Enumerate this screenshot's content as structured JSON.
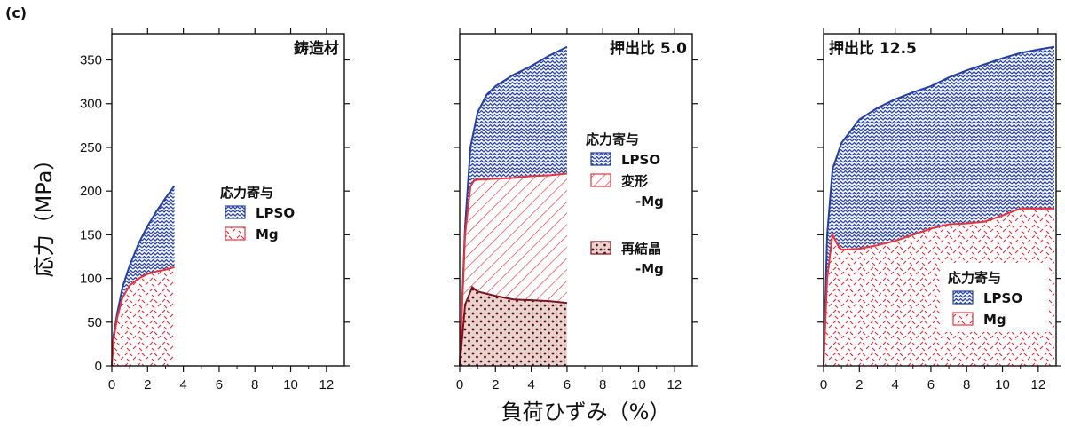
{
  "figure_label": "(c)",
  "ylabel": "応力（MPa）",
  "xlabel": "負荷ひずみ（%）",
  "colors": {
    "lpso": "#2440a0",
    "mg": "#e8323c",
    "rex": "#7a1420",
    "axis": "#111111"
  },
  "chart_data": [
    {
      "type": "area",
      "title": "鋳造材",
      "xlim": [
        0,
        13
      ],
      "ylim": [
        0,
        380
      ],
      "xticks": [
        0,
        2,
        4,
        6,
        8,
        10,
        12
      ],
      "yticks": [
        0,
        50,
        100,
        150,
        200,
        250,
        300,
        350
      ],
      "legend": {
        "title": "応力寄与",
        "entries": [
          "LPSO",
          "Mg"
        ],
        "position": "center-right"
      },
      "series": [
        {
          "name": "LPSO",
          "pattern": "lpso",
          "upper": [
            [
              0,
              0
            ],
            [
              0.1,
              35
            ],
            [
              0.3,
              60
            ],
            [
              0.6,
              90
            ],
            [
              1,
              115
            ],
            [
              1.5,
              140
            ],
            [
              2,
              160
            ],
            [
              2.5,
              177
            ],
            [
              3,
              192
            ],
            [
              3.5,
              206
            ]
          ],
          "lower": [
            [
              0,
              0
            ],
            [
              0.1,
              30
            ],
            [
              0.3,
              55
            ],
            [
              0.6,
              78
            ],
            [
              1,
              92
            ],
            [
              1.5,
              100
            ],
            [
              2,
              105
            ],
            [
              2.5,
              108
            ],
            [
              3,
              110
            ],
            [
              3.5,
              113
            ]
          ]
        },
        {
          "name": "Mg",
          "pattern": "mg",
          "upper": [
            [
              0,
              0
            ],
            [
              0.1,
              30
            ],
            [
              0.3,
              55
            ],
            [
              0.6,
              78
            ],
            [
              1,
              92
            ],
            [
              1.5,
              100
            ],
            [
              2,
              105
            ],
            [
              2.5,
              108
            ],
            [
              3,
              110
            ],
            [
              3.5,
              113
            ]
          ],
          "lower": [
            [
              0,
              0
            ],
            [
              3.5,
              0
            ]
          ]
        }
      ]
    },
    {
      "type": "area",
      "title": "押出比 5.0",
      "xlim": [
        0,
        13
      ],
      "ylim": [
        0,
        380
      ],
      "xticks": [
        0,
        2,
        4,
        6,
        8,
        10,
        12
      ],
      "yticks": [
        0,
        50,
        100,
        150,
        200,
        250,
        300,
        350
      ],
      "legend": {
        "title": "応力寄与",
        "entries": [
          "LPSO",
          "変形\n-Mg",
          "再結晶\n-Mg"
        ],
        "position": "center-right"
      },
      "series": [
        {
          "name": "LPSO",
          "pattern": "lpso",
          "upper": [
            [
              0,
              0
            ],
            [
              0.3,
              160
            ],
            [
              0.6,
              250
            ],
            [
              1,
              290
            ],
            [
              1.5,
              310
            ],
            [
              2,
              320
            ],
            [
              3,
              333
            ],
            [
              4,
              343
            ],
            [
              5,
              355
            ],
            [
              6,
              365
            ]
          ],
          "lower": [
            [
              0,
              0
            ],
            [
              0.3,
              150
            ],
            [
              0.6,
              205
            ],
            [
              0.8,
              212
            ],
            [
              1,
              213
            ],
            [
              2,
              214
            ],
            [
              3,
              215
            ],
            [
              4,
              217
            ],
            [
              5,
              218
            ],
            [
              6,
              220
            ]
          ]
        },
        {
          "name": "変形-Mg",
          "pattern": "def",
          "upper": [
            [
              0,
              0
            ],
            [
              0.3,
              150
            ],
            [
              0.6,
              205
            ],
            [
              0.8,
              212
            ],
            [
              1,
              213
            ],
            [
              2,
              214
            ],
            [
              3,
              215
            ],
            [
              4,
              217
            ],
            [
              5,
              218
            ],
            [
              6,
              220
            ]
          ],
          "lower": [
            [
              0,
              0
            ],
            [
              0.3,
              70
            ],
            [
              0.7,
              90
            ],
            [
              1,
              85
            ],
            [
              2,
              80
            ],
            [
              3,
              76
            ],
            [
              4,
              75
            ],
            [
              5,
              74
            ],
            [
              6,
              72
            ]
          ]
        },
        {
          "name": "再結晶-Mg",
          "pattern": "rex",
          "upper": [
            [
              0,
              0
            ],
            [
              0.3,
              70
            ],
            [
              0.7,
              90
            ],
            [
              1,
              85
            ],
            [
              2,
              80
            ],
            [
              3,
              76
            ],
            [
              4,
              75
            ],
            [
              5,
              74
            ],
            [
              6,
              72
            ]
          ],
          "lower": [
            [
              0,
              0
            ],
            [
              6,
              0
            ]
          ]
        }
      ]
    },
    {
      "type": "area",
      "title": "押出比 12.5",
      "xlim": [
        0,
        13
      ],
      "ylim": [
        0,
        380
      ],
      "xticks": [
        0,
        2,
        4,
        6,
        8,
        10,
        12
      ],
      "yticks": [
        0,
        50,
        100,
        150,
        200,
        250,
        300,
        350
      ],
      "legend": {
        "title": "応力寄与",
        "entries": [
          "LPSO",
          "Mg"
        ],
        "position": "bottom-right"
      },
      "series": [
        {
          "name": "LPSO",
          "pattern": "lpso",
          "upper": [
            [
              0,
              0
            ],
            [
              0.2,
              150
            ],
            [
              0.5,
              225
            ],
            [
              1,
              255
            ],
            [
              2,
              282
            ],
            [
              3,
              295
            ],
            [
              4,
              305
            ],
            [
              5,
              313
            ],
            [
              6,
              320
            ],
            [
              7,
              330
            ],
            [
              8,
              338
            ],
            [
              9,
              345
            ],
            [
              10,
              352
            ],
            [
              11,
              358
            ],
            [
              12,
              362
            ],
            [
              12.9,
              365
            ]
          ],
          "lower": [
            [
              0,
              0
            ],
            [
              0.2,
              100
            ],
            [
              0.5,
              150
            ],
            [
              0.8,
              138
            ],
            [
              1,
              133
            ],
            [
              2,
              134
            ],
            [
              3,
              138
            ],
            [
              4,
              143
            ],
            [
              5,
              150
            ],
            [
              6,
              157
            ],
            [
              7,
              162
            ],
            [
              8,
              163
            ],
            [
              9,
              165
            ],
            [
              10,
              172
            ],
            [
              11,
              180
            ],
            [
              12,
              180
            ],
            [
              12.9,
              180
            ]
          ]
        },
        {
          "name": "Mg",
          "pattern": "mg",
          "upper": [
            [
              0,
              0
            ],
            [
              0.2,
              100
            ],
            [
              0.5,
              150
            ],
            [
              0.8,
              138
            ],
            [
              1,
              133
            ],
            [
              2,
              134
            ],
            [
              3,
              138
            ],
            [
              4,
              143
            ],
            [
              5,
              150
            ],
            [
              6,
              157
            ],
            [
              7,
              162
            ],
            [
              8,
              163
            ],
            [
              9,
              165
            ],
            [
              10,
              172
            ],
            [
              11,
              180
            ],
            [
              12,
              180
            ],
            [
              12.9,
              180
            ]
          ],
          "lower": [
            [
              0,
              0
            ],
            [
              12.9,
              0
            ]
          ]
        }
      ]
    }
  ]
}
